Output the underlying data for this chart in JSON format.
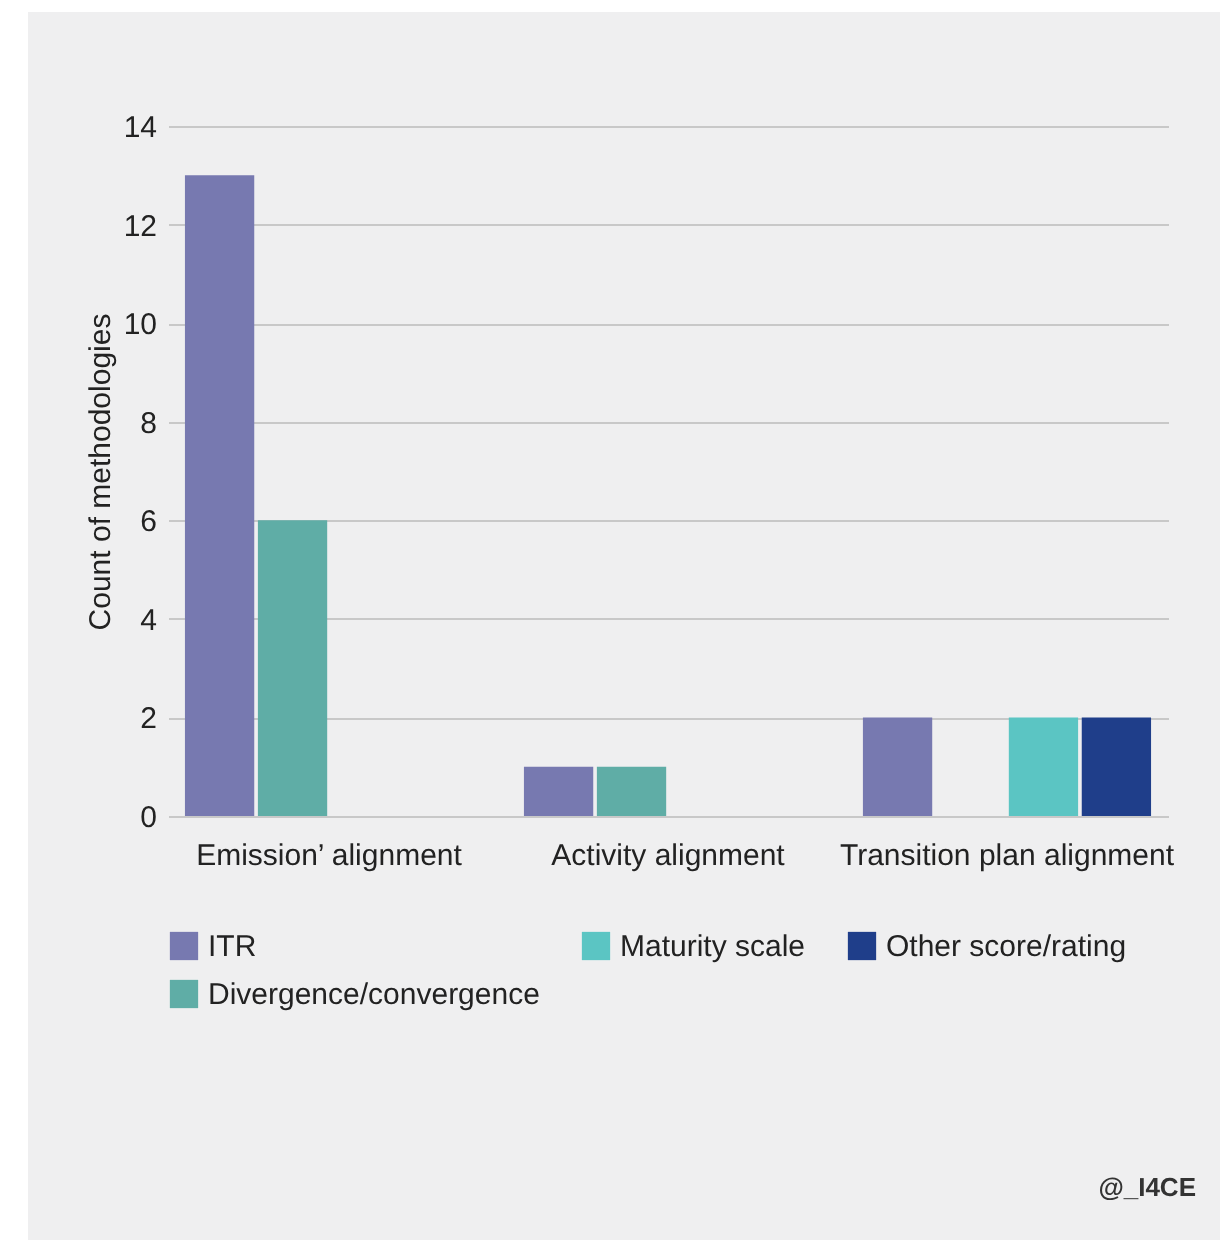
{
  "chart_data": {
    "type": "bar",
    "ylabel": "Count of methodologies",
    "categories": [
      "Emission’ alignment",
      "Activity alignment",
      "Transition plan alignment"
    ],
    "series": [
      {
        "name": "ITR",
        "color": "#7779b0",
        "values": [
          13,
          1,
          2
        ]
      },
      {
        "name": "Divergence/convergence",
        "color": "#5fada6",
        "values": [
          6,
          1,
          null
        ]
      },
      {
        "name": "Maturity scale",
        "color": "#5bc5c3",
        "values": [
          null,
          null,
          2
        ]
      },
      {
        "name": "Other score/rating",
        "color": "#1f3e8a",
        "values": [
          null,
          null,
          2
        ]
      }
    ],
    "ylim": [
      0,
      14
    ],
    "yticks": [
      0,
      2,
      4,
      6,
      8,
      10,
      12,
      14
    ],
    "grid": "y",
    "legend": "bottom",
    "annotations": [
      "@_I4CE"
    ]
  }
}
